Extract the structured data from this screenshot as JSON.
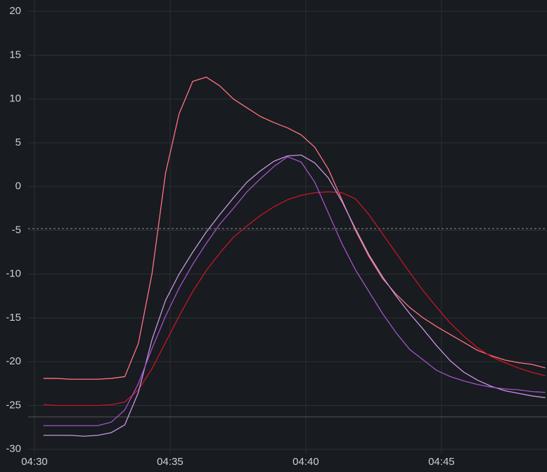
{
  "chart_data": {
    "type": "line",
    "x": [
      270.33,
      270.83,
      271.33,
      271.83,
      272.33,
      272.83,
      273.33,
      273.83,
      274.33,
      274.83,
      275.33,
      275.83,
      276.33,
      276.83,
      277.33,
      277.83,
      278.33,
      278.83,
      279.33,
      279.83,
      280.33,
      280.83,
      281.33,
      281.83,
      282.33,
      282.83,
      283.33,
      283.83,
      284.33,
      284.83,
      285.33,
      285.83,
      286.33,
      286.83,
      287.33,
      287.83,
      288.33,
      288.83
    ],
    "series": [
      {
        "color": "#ff7383",
        "values": [
          -21.9,
          -21.9,
          -22,
          -22,
          -22,
          -21.9,
          -21.7,
          -17.9,
          -10,
          1.5,
          8.3,
          12,
          12.5,
          11.5,
          10,
          9,
          8,
          7.3,
          6.7,
          5.9,
          4.5,
          2,
          -1.5,
          -5,
          -8,
          -10.5,
          -12.3,
          -13.8,
          -15,
          -16,
          -16.9,
          -17.8,
          -18.7,
          -19.3,
          -19.8,
          -20.1,
          -20.3,
          -20.7
        ]
      },
      {
        "color": "#c4162a",
        "values": [
          -24.9,
          -25,
          -25,
          -25,
          -25,
          -24.9,
          -24.6,
          -23.2,
          -20.8,
          -17.8,
          -14.8,
          -12,
          -9.6,
          -7.6,
          -5.8,
          -4.5,
          -3.3,
          -2.3,
          -1.5,
          -1.0,
          -0.7,
          -0.6,
          -0.7,
          -1.4,
          -3.2,
          -5.4,
          -7.6,
          -9.8,
          -11.9,
          -13.8,
          -15.6,
          -17.1,
          -18.4,
          -19.4,
          -20.1,
          -20.7,
          -21.2,
          -21.6
        ]
      },
      {
        "color": "#ca95e5",
        "values": [
          -28.4,
          -28.4,
          -28.4,
          -28.5,
          -28.4,
          -28.1,
          -27.2,
          -23.5,
          -17.5,
          -13,
          -10,
          -7.5,
          -5.2,
          -3.2,
          -1.3,
          0.5,
          1.8,
          2.9,
          3.5,
          3.6,
          2.7,
          1.0,
          -1.7,
          -4.8,
          -7.8,
          -10.3,
          -12.5,
          -14.5,
          -16.3,
          -18.2,
          -19.9,
          -21.2,
          -22.1,
          -22.8,
          -23.3,
          -23.6,
          -23.9,
          -24.1
        ]
      },
      {
        "color": "#a352cc",
        "values": [
          -27.3,
          -27.3,
          -27.3,
          -27.3,
          -27.3,
          -26.9,
          -25.5,
          -22.5,
          -18.5,
          -14.8,
          -11.6,
          -8.9,
          -6.5,
          -4.3,
          -2.5,
          -0.6,
          0.9,
          2.3,
          3.4,
          2.8,
          0.5,
          -3,
          -6.5,
          -9.5,
          -12,
          -14.5,
          -16.7,
          -18.6,
          -19.8,
          -21,
          -21.7,
          -22.2,
          -22.6,
          -22.9,
          -23.1,
          -23.2,
          -23.4,
          -23.5
        ]
      }
    ],
    "xlim": [
      270,
      288.89
    ],
    "xticks": [
      {
        "value": 270,
        "label": "04:30"
      },
      {
        "value": 275,
        "label": "04:35"
      },
      {
        "value": 280,
        "label": "04:40"
      },
      {
        "value": 285,
        "label": "04:45"
      }
    ],
    "ylim": [
      -30.5,
      21.3
    ],
    "yticks": [
      20,
      15,
      10,
      5,
      0,
      -5,
      -10,
      -15,
      -20,
      -25,
      -30
    ],
    "grid": true,
    "thresholds": [
      {
        "value": -4.8,
        "style": "dashed"
      },
      {
        "value": -26.3,
        "style": "solid"
      }
    ]
  }
}
